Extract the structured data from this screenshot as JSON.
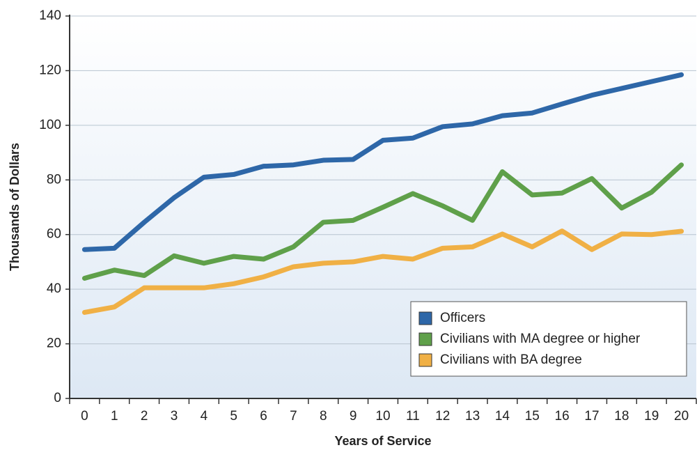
{
  "chart_data": {
    "type": "line",
    "x_label": "Years of Service",
    "y_label": "Thousands of Dollars",
    "categories": [
      0,
      1,
      2,
      3,
      4,
      5,
      6,
      7,
      8,
      9,
      10,
      11,
      12,
      13,
      14,
      15,
      16,
      17,
      18,
      19,
      20
    ],
    "series": [
      {
        "name": "Officers",
        "color": "#2e67a8",
        "values": [
          54.5,
          55,
          64.5,
          73.5,
          81,
          82,
          85,
          85.5,
          87.2,
          87.5,
          94.5,
          95.3,
          99.5,
          100.5,
          103.5,
          104.5,
          107.8,
          111,
          113.5,
          116,
          118.5
        ]
      },
      {
        "name": "Civilians with MA degree or higher",
        "color": "#5fa04a",
        "values": [
          44,
          47,
          45,
          52.2,
          49.5,
          52,
          51,
          55.5,
          64.5,
          65.2,
          70,
          75,
          70.5,
          65.2,
          83,
          74.5,
          75.2,
          80.5,
          69.7,
          75.5,
          85.5
        ]
      },
      {
        "name": "Civilians with BA degree",
        "color": "#f0b045",
        "values": [
          31.5,
          33.5,
          40.5,
          40.5,
          40.5,
          42,
          44.5,
          48.2,
          49.5,
          50,
          52,
          51,
          55,
          55.5,
          60.2,
          55.5,
          61.3,
          54.5,
          60.2,
          60,
          61.2
        ]
      }
    ],
    "ylim": [
      0,
      140
    ],
    "yticks": [
      0,
      20,
      40,
      60,
      80,
      100,
      120,
      140
    ],
    "grid": true,
    "legend": "lower right"
  }
}
